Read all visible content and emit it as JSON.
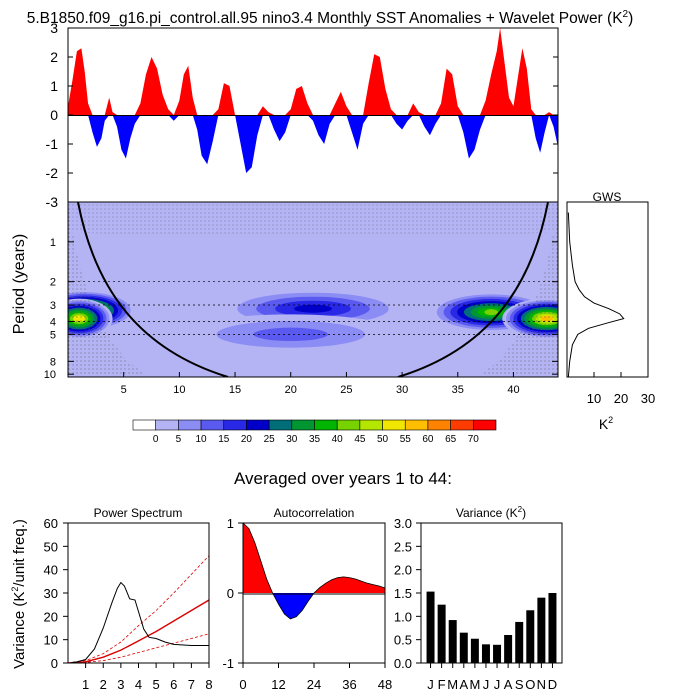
{
  "figure": {
    "title": "5.B1850.f09_g16.pi_control.all.95 nino3.4 Monthly SST Anomalies + Wavelet Power (K",
    "title_sup": "2",
    "title_end": ")",
    "subtitle": "Averaged over years 1 to 44:"
  },
  "colors": {
    "positive": "#ff0000",
    "negative": "#0000ff",
    "line": "#000000",
    "spectrum_fit": "#dd0000",
    "bars": "#000000"
  },
  "chart_data": [
    {
      "id": "timeseries",
      "type": "area",
      "yticks": [
        "3",
        "2",
        "1",
        "0",
        "-1",
        "-2",
        "-3"
      ],
      "ylim": [
        -3,
        3
      ],
      "xlim": [
        0,
        44
      ],
      "series_note": "",
      "x": [
        0,
        0.4,
        0.8,
        1.2,
        1.5,
        1.8,
        2.2,
        2.6,
        3.0,
        3.3,
        3.7,
        4.0,
        4.4,
        4.8,
        5.2,
        5.6,
        6.0,
        6.5,
        7.0,
        7.5,
        8.0,
        8.5,
        9.0,
        9.5,
        10.0,
        10.4,
        10.8,
        11.2,
        11.6,
        12.0,
        12.5,
        13.0,
        13.5,
        14.0,
        14.5,
        15.0,
        15.5,
        16.0,
        16.5,
        17.0,
        17.5,
        18.0,
        18.5,
        19.0,
        19.5,
        20.0,
        20.5,
        21.0,
        21.5,
        22.0,
        22.5,
        23.0,
        23.5,
        24.0,
        24.5,
        25.0,
        25.5,
        26.0,
        26.5,
        27.0,
        27.5,
        28.0,
        28.5,
        29.0,
        29.5,
        30.0,
        30.5,
        31.0,
        31.5,
        32.0,
        32.5,
        33.0,
        33.5,
        34.0,
        34.5,
        35.0,
        35.5,
        36.0,
        36.5,
        37.0,
        37.5,
        38.0,
        38.5,
        38.8,
        39.2,
        39.6,
        40.0,
        40.4,
        40.8,
        41.2,
        41.6,
        42.0,
        42.4,
        42.8,
        43.2,
        43.6,
        44.0
      ],
      "y": [
        0.3,
        1.2,
        2.2,
        2.3,
        1.5,
        0.4,
        -0.6,
        -1.1,
        -0.8,
        -0.2,
        0.6,
        0.1,
        -0.4,
        -1.2,
        -1.5,
        -0.8,
        -0.3,
        0.4,
        1.4,
        2.0,
        1.6,
        0.7,
        0.2,
        -0.2,
        0.5,
        1.4,
        1.7,
        0.6,
        -0.5,
        -1.4,
        -1.7,
        -0.9,
        0.2,
        1.1,
        1.0,
        0.0,
        -1.0,
        -2.0,
        -1.8,
        -0.7,
        0.3,
        0.1,
        -0.5,
        -0.9,
        -0.6,
        0.2,
        0.9,
        1.0,
        0.4,
        -0.2,
        -0.7,
        -1.0,
        -0.3,
        0.4,
        0.8,
        0.3,
        -0.6,
        -1.2,
        -0.3,
        1.1,
        2.1,
        2.0,
        0.9,
        0.2,
        -0.3,
        -0.5,
        -0.2,
        0.4,
        0.1,
        -0.4,
        -0.7,
        -0.3,
        0.4,
        1.6,
        1.4,
        0.3,
        -0.6,
        -1.5,
        -1.2,
        -0.5,
        0.5,
        1.4,
        2.2,
        3.0,
        1.8,
        0.6,
        0.3,
        1.3,
        2.3,
        1.6,
        0.2,
        -0.8,
        -1.3,
        -0.6,
        0.1,
        -0.4,
        -1.1
      ]
    },
    {
      "id": "wavelet",
      "type": "heatmap",
      "ylabel": "Period (years)",
      "yticks": [
        "1",
        "2",
        "3",
        "4",
        "5",
        "8",
        "10"
      ],
      "xticks": [
        "5",
        "10",
        "15",
        "20",
        "25",
        "30",
        "35",
        "40"
      ],
      "xlim": [
        0,
        44
      ],
      "power_bands": [
        {
          "period": 3.3,
          "x_from": 0,
          "x_to": 9,
          "peak_x": 1.5,
          "peak_level": 60
        },
        {
          "period": 3.8,
          "x_from": 0,
          "x_to": 6,
          "peak_x": 1,
          "peak_level": 55
        },
        {
          "period": 3.2,
          "x_from": 10,
          "x_to": 27,
          "peak_x": 22,
          "peak_level": 25
        },
        {
          "period": 3.4,
          "x_from": 33,
          "x_to": 44,
          "peak_x": 38,
          "peak_level": 45
        },
        {
          "period": 3.8,
          "x_from": 36,
          "x_to": 44,
          "peak_x": 43,
          "peak_level": 60
        },
        {
          "period": 5.0,
          "x_from": 10,
          "x_to": 30,
          "peak_x": 20,
          "peak_level": 15
        }
      ]
    },
    {
      "id": "colorbar",
      "type": "table",
      "labels": [
        "0",
        "5",
        "10",
        "15",
        "20",
        "25",
        "30",
        "35",
        "40",
        "45",
        "50",
        "55",
        "60",
        "65",
        "70"
      ],
      "colors": [
        "#ffffff",
        "#b4b4f5",
        "#8c8cf5",
        "#5a5af0",
        "#2828e6",
        "#0000c8",
        "#006e78",
        "#009632",
        "#00b400",
        "#78d200",
        "#b4e600",
        "#f0e600",
        "#ffbe00",
        "#ff8200",
        "#ff3c00",
        "#ff0000"
      ]
    },
    {
      "id": "gws",
      "type": "line",
      "title": "GWS",
      "xlabel": "K",
      "xlabel_sup": "2",
      "xticks": [
        "10",
        "20",
        "30"
      ],
      "xlim": [
        0,
        30
      ],
      "period": [
        0.6,
        1.0,
        1.5,
        2.0,
        2.3,
        2.6,
        2.9,
        3.2,
        3.5,
        3.8,
        4.1,
        4.5,
        5.0,
        6.0,
        8.0,
        10.5
      ],
      "power": [
        0.5,
        1.0,
        2.0,
        3.0,
        4.5,
        6.5,
        10.0,
        15.5,
        19.5,
        21.0,
        15.0,
        8.0,
        4.0,
        2.0,
        1.0,
        0.5
      ]
    },
    {
      "id": "power_spectrum",
      "type": "line",
      "title": "Power Spectrum",
      "ylabel": "Variance (K",
      "ylabel_sup": "2",
      "ylabel_end": "/unit freq.)",
      "yticks": [
        "60",
        "50",
        "40",
        "30",
        "20",
        "10",
        "0"
      ],
      "xticks": [
        "1",
        "2",
        "3",
        "4",
        "5",
        "6",
        "7",
        "8"
      ],
      "xlim": [
        0,
        8
      ],
      "ylim": [
        0,
        60
      ],
      "spectrum": {
        "x": [
          0.2,
          0.5,
          1.0,
          1.5,
          2.0,
          2.5,
          2.8,
          3.0,
          3.2,
          3.5,
          3.8,
          4.0,
          4.3,
          4.6,
          5.0,
          5.5,
          6.0,
          7.0,
          8.0
        ],
        "y": [
          0.2,
          0.5,
          1.5,
          6.0,
          15.0,
          26.0,
          32.0,
          34.5,
          33.0,
          27.5,
          27.0,
          22.0,
          14.5,
          11.0,
          10.5,
          9.0,
          8.0,
          7.5,
          7.5
        ]
      },
      "red_noise": {
        "x": [
          0,
          1,
          2,
          3,
          4,
          5,
          6,
          7,
          8
        ],
        "y": [
          0,
          0.5,
          2.5,
          5.5,
          9.5,
          13.5,
          18.0,
          22.5,
          27.0
        ]
      },
      "confidence_upper": {
        "x": [
          0,
          1,
          2,
          3,
          4,
          5,
          6,
          7,
          8
        ],
        "y": [
          0,
          1.0,
          4.0,
          9.0,
          16.0,
          22.5,
          30.0,
          38.0,
          46.0
        ]
      },
      "confidence_lower": {
        "x": [
          0,
          1,
          2,
          3,
          4,
          5,
          6,
          7,
          8
        ],
        "y": [
          0,
          0.3,
          1.0,
          2.5,
          4.5,
          6.5,
          8.5,
          10.5,
          12.5
        ]
      }
    },
    {
      "id": "autocorrelation",
      "type": "area",
      "title": "Autocorrelation",
      "yticks": [
        "1",
        "0",
        "-1"
      ],
      "xticks": [
        "0",
        "12",
        "24",
        "36",
        "48"
      ],
      "xlim": [
        0,
        48
      ],
      "ylim": [
        -1,
        1
      ],
      "x": [
        0,
        2,
        4,
        6,
        8,
        10,
        12,
        14,
        16,
        18,
        20,
        22,
        24,
        26,
        28,
        30,
        32,
        34,
        36,
        38,
        40,
        42,
        44,
        46,
        48
      ],
      "y": [
        1.0,
        0.92,
        0.72,
        0.46,
        0.2,
        0.0,
        -0.16,
        -0.3,
        -0.37,
        -0.34,
        -0.25,
        -0.12,
        0.0,
        0.08,
        0.14,
        0.19,
        0.22,
        0.23,
        0.22,
        0.2,
        0.17,
        0.14,
        0.12,
        0.1,
        0.07
      ]
    },
    {
      "id": "variance",
      "type": "bar",
      "title": "Variance (K",
      "title_sup": "2",
      "title_end": ")",
      "yticks": [
        "3.0",
        "2.5",
        "2.0",
        "1.5",
        "1.0",
        "0.5",
        "0.0"
      ],
      "ylim": [
        0,
        3
      ],
      "categories": [
        "J",
        "F",
        "M",
        "A",
        "M",
        "J",
        "J",
        "A",
        "S",
        "O",
        "N",
        "D"
      ],
      "values": [
        1.53,
        1.25,
        0.92,
        0.65,
        0.52,
        0.4,
        0.39,
        0.6,
        0.88,
        1.13,
        1.4,
        1.5
      ]
    }
  ]
}
